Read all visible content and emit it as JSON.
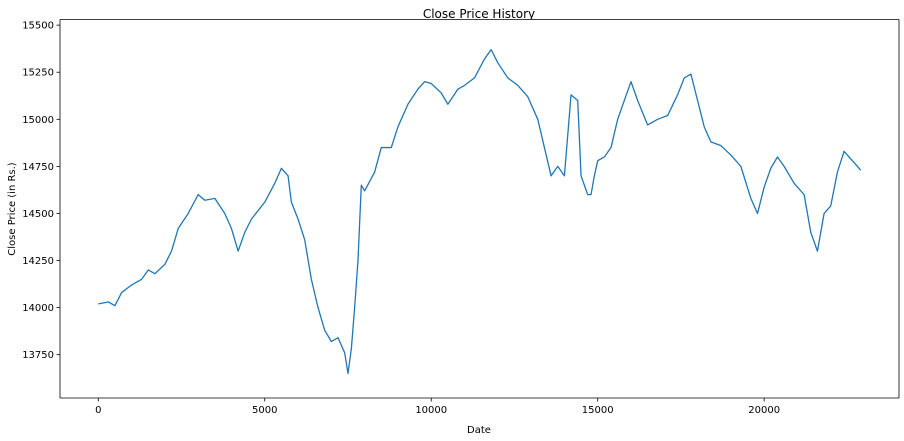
{
  "chart_data": {
    "type": "line",
    "title": "Close Price History",
    "xlabel": "Date",
    "ylabel": "Close Price (in Rs.)",
    "xlim": [
      -1150,
      24050
    ],
    "ylim": [
      13520,
      15530
    ],
    "xticks": [
      0,
      5000,
      10000,
      15000,
      20000
    ],
    "xtick_labels": [
      "0",
      "5000",
      "10000",
      "15000",
      "20000"
    ],
    "yticks": [
      13750,
      14000,
      14250,
      14500,
      14750,
      15000,
      15250,
      15500
    ],
    "ytick_labels": [
      "13750",
      "14000",
      "14250",
      "14500",
      "14750",
      "15000",
      "15250",
      "15500"
    ],
    "grid": false,
    "series": [
      {
        "color": "#1f77b4",
        "x": [
          0,
          300,
          500,
          700,
          1000,
          1300,
          1500,
          1700,
          2000,
          2200,
          2400,
          2700,
          3000,
          3200,
          3500,
          3800,
          4000,
          4200,
          4400,
          4600,
          5000,
          5300,
          5500,
          5700,
          5800,
          6000,
          6200,
          6400,
          6600,
          6800,
          7000,
          7200,
          7400,
          7500,
          7600,
          7700,
          7800,
          7850,
          7900,
          8000,
          8300,
          8500,
          8800,
          9000,
          9300,
          9600,
          9800,
          10000,
          10300,
          10500,
          10800,
          11000,
          11300,
          11600,
          11800,
          12000,
          12300,
          12600,
          12900,
          13200,
          13400,
          13600,
          13800,
          14000,
          14200,
          14400,
          14500,
          14700,
          14800,
          14900,
          15000,
          15200,
          15400,
          15600,
          15800,
          16000,
          16200,
          16500,
          16800,
          17100,
          17400,
          17600,
          17800,
          18000,
          18200,
          18400,
          18700,
          19000,
          19300,
          19600,
          19800,
          20000,
          20200,
          20400,
          20600,
          20900,
          21200,
          21400,
          21600,
          21800,
          22000,
          22200,
          22400,
          22700,
          22900
        ],
        "y": [
          14020,
          14030,
          14010,
          14080,
          14120,
          14150,
          14200,
          14180,
          14230,
          14300,
          14420,
          14500,
          14600,
          14570,
          14580,
          14500,
          14420,
          14300,
          14400,
          14470,
          14560,
          14660,
          14740,
          14700,
          14560,
          14470,
          14360,
          14150,
          14000,
          13880,
          13820,
          13840,
          13760,
          13650,
          13780,
          14000,
          14250,
          14450,
          14650,
          14620,
          14720,
          14850,
          14850,
          14960,
          15080,
          15160,
          15200,
          15190,
          15140,
          15080,
          15160,
          15180,
          15220,
          15320,
          15370,
          15300,
          15220,
          15180,
          15120,
          15000,
          14850,
          14700,
          14750,
          14700,
          15130,
          15100,
          14700,
          14600,
          14600,
          14700,
          14780,
          14800,
          14850,
          15000,
          15100,
          15200,
          15100,
          14970,
          15000,
          15020,
          15130,
          15220,
          15240,
          15100,
          14960,
          14880,
          14860,
          14810,
          14750,
          14580,
          14500,
          14640,
          14740,
          14800,
          14750,
          14660,
          14600,
          14400,
          14300,
          14500,
          14540,
          14720,
          14830,
          14770,
          14730
        ]
      }
    ]
  }
}
